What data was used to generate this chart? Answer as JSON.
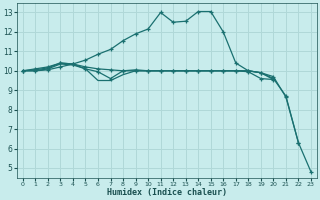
{
  "xlabel": "Humidex (Indice chaleur)",
  "bg_color": "#c8ecec",
  "grid_color": "#b0d8d8",
  "line_color": "#1a7070",
  "xlim": [
    -0.5,
    23.5
  ],
  "ylim": [
    4.5,
    13.5
  ],
  "xticks": [
    0,
    1,
    2,
    3,
    4,
    5,
    6,
    7,
    8,
    9,
    10,
    11,
    12,
    13,
    14,
    15,
    16,
    17,
    18,
    19,
    20,
    21,
    22,
    23
  ],
  "yticks": [
    5,
    6,
    7,
    8,
    9,
    10,
    11,
    12,
    13
  ],
  "series": [
    {
      "x": [
        0,
        1,
        2,
        3,
        4,
        5,
        6,
        7,
        8,
        9,
        10,
        11,
        12,
        13,
        14,
        15,
        16,
        17,
        18,
        19,
        20
      ],
      "y": [
        10.0,
        10.1,
        10.2,
        10.4,
        10.35,
        10.1,
        9.95,
        9.6,
        10.0,
        10.05,
        10.0,
        10.0,
        10.0,
        10.0,
        10.0,
        10.0,
        10.0,
        10.0,
        9.95,
        9.6,
        9.55
      ],
      "marker": true
    },
    {
      "x": [
        0,
        1,
        2,
        3,
        4,
        5,
        6,
        7,
        8,
        9,
        10,
        11,
        12,
        13,
        14,
        15,
        16,
        17,
        18,
        19,
        20,
        21,
        22
      ],
      "y": [
        10.0,
        10.05,
        10.15,
        10.4,
        10.35,
        10.2,
        10.1,
        10.05,
        10.0,
        10.0,
        10.0,
        10.0,
        10.0,
        10.0,
        10.0,
        10.0,
        10.0,
        10.0,
        10.0,
        9.9,
        9.7,
        8.65,
        6.3
      ],
      "marker": true
    },
    {
      "x": [
        0,
        1,
        2,
        3,
        4,
        5,
        6,
        7,
        8,
        9,
        10,
        11,
        12,
        13,
        14,
        15,
        16,
        17,
        18,
        19,
        20,
        21,
        22,
        23
      ],
      "y": [
        10.0,
        10.0,
        10.05,
        10.2,
        10.35,
        10.55,
        10.85,
        11.1,
        11.55,
        11.9,
        12.15,
        13.0,
        12.5,
        12.55,
        13.05,
        13.05,
        12.0,
        10.4,
        10.0,
        9.9,
        9.6,
        8.7,
        6.3,
        4.8
      ],
      "marker": true
    },
    {
      "x": [
        0,
        1,
        2,
        3,
        4,
        5,
        6,
        7,
        8,
        9,
        10,
        11,
        12,
        13,
        14,
        15,
        16,
        17,
        18,
        19,
        20
      ],
      "y": [
        10.0,
        10.0,
        10.1,
        10.35,
        10.3,
        10.1,
        9.5,
        9.5,
        9.8,
        10.0,
        10.0,
        10.0,
        10.0,
        10.0,
        10.0,
        10.0,
        10.0,
        10.0,
        10.0,
        9.9,
        9.55
      ],
      "marker": false
    }
  ]
}
